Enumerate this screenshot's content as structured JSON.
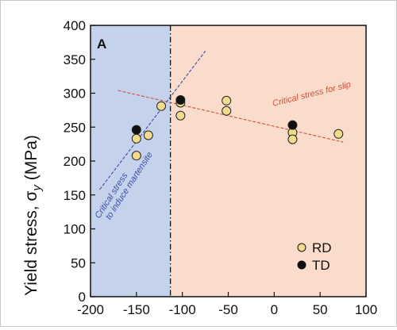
{
  "chart_data": {
    "type": "scatter",
    "panel_label": "A",
    "ylabel_main": "Yield stress, σ",
    "ylabel_sub": "y",
    "ylabel_unit": " (MPa)",
    "xlim": [
      -200,
      100
    ],
    "ylim": [
      0,
      400
    ],
    "x_ticks": [
      -200,
      -150,
      -100,
      -50,
      0,
      50,
      100
    ],
    "y_ticks": [
      0,
      50,
      100,
      150,
      200,
      250,
      300,
      350,
      400
    ],
    "regions": [
      {
        "x0": -200,
        "x1": -113,
        "color": "#c5d2ec"
      },
      {
        "x0": -113,
        "x1": 100,
        "color": "#f9dccb"
      }
    ],
    "vline": {
      "x": -113
    },
    "lines": [
      {
        "label": "Critical stress for slip",
        "x": [
          -170,
          75
        ],
        "y": [
          304,
          228
        ],
        "color": "#d0513b"
      },
      {
        "label_lines": [
          "Critical stress",
          "to induce martensite"
        ],
        "x": [
          -190,
          -75
        ],
        "y": [
          158,
          362
        ],
        "color": "#3b4fa6"
      }
    ],
    "series": [
      {
        "name": "RD",
        "color": "#f0dc8c",
        "x": [
          -150,
          -150,
          -137,
          -123,
          -102,
          -102,
          -52,
          -52,
          20,
          20,
          70
        ],
        "y": [
          233,
          208,
          238,
          281,
          286,
          267,
          289,
          274,
          242,
          232,
          240
        ]
      },
      {
        "name": "TD",
        "color": "#111111",
        "x": [
          -150,
          -102,
          20
        ],
        "y": [
          246,
          290,
          253
        ]
      }
    ],
    "legend": {
      "position": "bottom-right"
    }
  }
}
